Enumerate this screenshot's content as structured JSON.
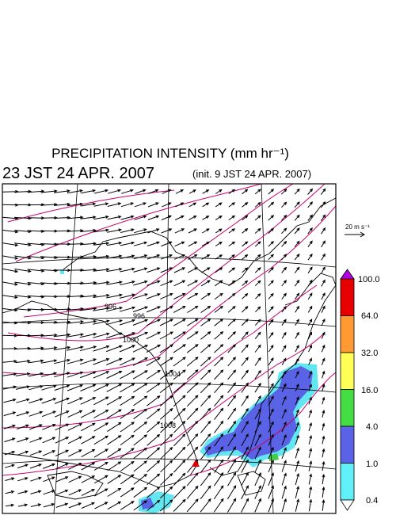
{
  "header": {
    "title": "PRECIPITATION INTENSITY (mm hr⁻¹)",
    "time": "23 JST 24 APR. 2007",
    "init": "(init. 9 JST 24 APR. 2007)"
  },
  "scale_arrow": {
    "label": "20 m s⁻¹"
  },
  "colorbar": {
    "labels": [
      "100.0",
      "64.0",
      "32.0",
      "16.0",
      "4.0",
      "1.0",
      "0.4"
    ]
  },
  "isobar_labels": [
    "996",
    "996",
    "1000",
    "1004",
    "1008"
  ]
}
